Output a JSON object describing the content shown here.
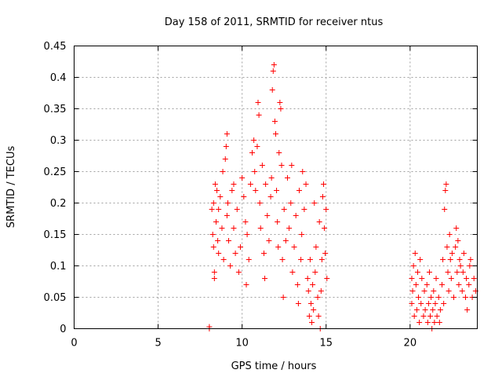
{
  "chart_data": {
    "type": "scatter",
    "title": "Day 158 of 2011, SRMTID for receiver ntus",
    "xlabel": "GPS time / hours",
    "ylabel": "SRMTID / TECUs",
    "xlim": [
      0,
      24
    ],
    "ylim": [
      0,
      0.45
    ],
    "x_ticks": [
      0,
      5,
      10,
      15,
      20
    ],
    "y_ticks": [
      0,
      0.05,
      0.1,
      0.15,
      0.2,
      0.25,
      0.3,
      0.35,
      0.4,
      0.45
    ],
    "x_tick_labels": [
      "0",
      "5",
      "10",
      "15",
      "20"
    ],
    "y_tick_labels": [
      "0",
      "0.05",
      "0.1",
      "0.15",
      "0.2",
      "0.25",
      "0.3",
      "0.35",
      "0.4",
      "0.45"
    ],
    "marker": "plus",
    "color": "#ff0000",
    "grid": true,
    "series": [
      {
        "name": "SRMTID",
        "points": [
          [
            8.05,
            0.0
          ],
          [
            8.05,
            0.003
          ],
          [
            8.2,
            0.19
          ],
          [
            8.25,
            0.15
          ],
          [
            8.3,
            0.2
          ],
          [
            8.3,
            0.13
          ],
          [
            8.35,
            0.09
          ],
          [
            8.35,
            0.08
          ],
          [
            8.4,
            0.23
          ],
          [
            8.45,
            0.17
          ],
          [
            8.5,
            0.22
          ],
          [
            8.55,
            0.14
          ],
          [
            8.6,
            0.19
          ],
          [
            8.6,
            0.12
          ],
          [
            8.7,
            0.21
          ],
          [
            8.8,
            0.16
          ],
          [
            8.85,
            0.25
          ],
          [
            8.9,
            0.11
          ],
          [
            9.0,
            0.27
          ],
          [
            9.05,
            0.29
          ],
          [
            9.1,
            0.31
          ],
          [
            9.1,
            0.18
          ],
          [
            9.15,
            0.2
          ],
          [
            9.2,
            0.14
          ],
          [
            9.3,
            0.1
          ],
          [
            9.4,
            0.22
          ],
          [
            9.5,
            0.23
          ],
          [
            9.5,
            0.16
          ],
          [
            9.6,
            0.12
          ],
          [
            9.7,
            0.19
          ],
          [
            9.8,
            0.09
          ],
          [
            9.9,
            0.13
          ],
          [
            10.0,
            0.24
          ],
          [
            10.1,
            0.21
          ],
          [
            10.2,
            0.17
          ],
          [
            10.25,
            0.07
          ],
          [
            10.3,
            0.15
          ],
          [
            10.4,
            0.11
          ],
          [
            10.5,
            0.23
          ],
          [
            10.6,
            0.28
          ],
          [
            10.7,
            0.3
          ],
          [
            10.75,
            0.25
          ],
          [
            10.8,
            0.22
          ],
          [
            10.9,
            0.29
          ],
          [
            10.95,
            0.36
          ],
          [
            11.0,
            0.34
          ],
          [
            11.05,
            0.2
          ],
          [
            11.1,
            0.16
          ],
          [
            11.2,
            0.26
          ],
          [
            11.3,
            0.12
          ],
          [
            11.35,
            0.08
          ],
          [
            11.4,
            0.23
          ],
          [
            11.5,
            0.18
          ],
          [
            11.6,
            0.14
          ],
          [
            11.7,
            0.21
          ],
          [
            11.75,
            0.24
          ],
          [
            11.8,
            0.38
          ],
          [
            11.85,
            0.41
          ],
          [
            11.9,
            0.42
          ],
          [
            11.95,
            0.33
          ],
          [
            12.0,
            0.31
          ],
          [
            12.05,
            0.22
          ],
          [
            12.1,
            0.17
          ],
          [
            12.15,
            0.13
          ],
          [
            12.2,
            0.28
          ],
          [
            12.25,
            0.36
          ],
          [
            12.3,
            0.35
          ],
          [
            12.35,
            0.26
          ],
          [
            12.4,
            0.11
          ],
          [
            12.45,
            0.05
          ],
          [
            12.5,
            0.19
          ],
          [
            12.6,
            0.14
          ],
          [
            12.7,
            0.24
          ],
          [
            12.8,
            0.16
          ],
          [
            12.9,
            0.2
          ],
          [
            12.95,
            0.26
          ],
          [
            13.0,
            0.09
          ],
          [
            13.1,
            0.13
          ],
          [
            13.2,
            0.18
          ],
          [
            13.3,
            0.07
          ],
          [
            13.35,
            0.04
          ],
          [
            13.4,
            0.22
          ],
          [
            13.5,
            0.11
          ],
          [
            13.55,
            0.15
          ],
          [
            13.6,
            0.25
          ],
          [
            13.7,
            0.19
          ],
          [
            13.8,
            0.23
          ],
          [
            13.9,
            0.08
          ],
          [
            13.95,
            0.06
          ],
          [
            14.0,
            0.02
          ],
          [
            14.05,
            0.11
          ],
          [
            14.1,
            0.04
          ],
          [
            14.15,
            0.01
          ],
          [
            14.2,
            0.07
          ],
          [
            14.25,
            0.03
          ],
          [
            14.3,
            0.2
          ],
          [
            14.35,
            0.09
          ],
          [
            14.4,
            0.13
          ],
          [
            14.5,
            0.05
          ],
          [
            14.55,
            0.02
          ],
          [
            14.6,
            0.17
          ],
          [
            14.65,
            0.0
          ],
          [
            14.7,
            0.06
          ],
          [
            14.75,
            0.11
          ],
          [
            14.8,
            0.21
          ],
          [
            14.85,
            0.23
          ],
          [
            14.9,
            0.16
          ],
          [
            14.95,
            0.12
          ],
          [
            15.0,
            0.19
          ],
          [
            15.05,
            0.08
          ],
          [
            20.1,
            0.04
          ],
          [
            20.1,
            0.08
          ],
          [
            20.15,
            0.06
          ],
          [
            20.2,
            0.1
          ],
          [
            20.25,
            0.02
          ],
          [
            20.3,
            0.12
          ],
          [
            20.35,
            0.07
          ],
          [
            20.4,
            0.03
          ],
          [
            20.45,
            0.09
          ],
          [
            20.5,
            0.05
          ],
          [
            20.55,
            0.01
          ],
          [
            20.6,
            0.11
          ],
          [
            20.65,
            0.04
          ],
          [
            20.7,
            0.08
          ],
          [
            20.8,
            0.02
          ],
          [
            20.85,
            0.06
          ],
          [
            20.9,
            0.03
          ],
          [
            21.0,
            0.07
          ],
          [
            21.05,
            0.01
          ],
          [
            21.1,
            0.04
          ],
          [
            21.15,
            0.09
          ],
          [
            21.2,
            0.02
          ],
          [
            21.25,
            0.05
          ],
          [
            21.3,
            0.0
          ],
          [
            21.35,
            0.03
          ],
          [
            21.4,
            0.06
          ],
          [
            21.45,
            0.01
          ],
          [
            21.5,
            0.04
          ],
          [
            21.55,
            0.08
          ],
          [
            21.6,
            0.02
          ],
          [
            21.7,
            0.05
          ],
          [
            21.75,
            0.01
          ],
          [
            21.8,
            0.03
          ],
          [
            21.9,
            0.07
          ],
          [
            21.95,
            0.11
          ],
          [
            22.0,
            0.04
          ],
          [
            22.05,
            0.19
          ],
          [
            22.1,
            0.22
          ],
          [
            22.15,
            0.23
          ],
          [
            22.2,
            0.13
          ],
          [
            22.25,
            0.09
          ],
          [
            22.3,
            0.06
          ],
          [
            22.35,
            0.15
          ],
          [
            22.4,
            0.11
          ],
          [
            22.45,
            0.08
          ],
          [
            22.5,
            0.12
          ],
          [
            22.6,
            0.05
          ],
          [
            22.7,
            0.13
          ],
          [
            22.75,
            0.16
          ],
          [
            22.8,
            0.09
          ],
          [
            22.85,
            0.14
          ],
          [
            22.9,
            0.07
          ],
          [
            22.95,
            0.11
          ],
          [
            23.0,
            0.1
          ],
          [
            23.1,
            0.06
          ],
          [
            23.15,
            0.09
          ],
          [
            23.2,
            0.12
          ],
          [
            23.3,
            0.05
          ],
          [
            23.35,
            0.08
          ],
          [
            23.4,
            0.03
          ],
          [
            23.5,
            0.07
          ],
          [
            23.55,
            0.1
          ],
          [
            23.6,
            0.11
          ],
          [
            23.7,
            0.05
          ],
          [
            23.8,
            0.08
          ],
          [
            23.9,
            0.06
          ]
        ]
      }
    ]
  }
}
